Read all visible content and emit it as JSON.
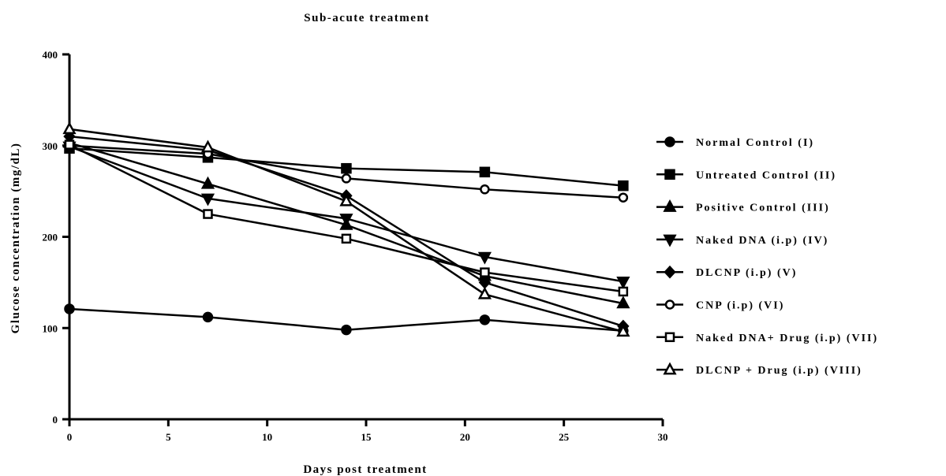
{
  "chart_data": {
    "type": "line",
    "title": "Sub-acute treatment",
    "xlabel": "Days post treatment",
    "ylabel": "Glucose concentration (mg/dL)",
    "xlim": [
      0,
      30
    ],
    "ylim": [
      0,
      400
    ],
    "xticks": [
      0,
      5,
      10,
      15,
      20,
      25,
      30
    ],
    "yticks": [
      0,
      100,
      200,
      300,
      400
    ],
    "x": [
      0,
      7,
      14,
      21,
      28
    ],
    "grid": false,
    "legend_position": "right",
    "series": [
      {
        "name": "Normal Control (I)",
        "marker": "circle-filled",
        "values": [
          121,
          112,
          98,
          109,
          97
        ]
      },
      {
        "name": "Untreated Control (II)",
        "marker": "square-filled",
        "values": [
          297,
          287,
          275,
          271,
          256
        ]
      },
      {
        "name": "Positive Control (III)",
        "marker": "triangle-up-filled",
        "values": [
          303,
          258,
          213,
          157,
          127
        ]
      },
      {
        "name": "Naked DNA (i.p) (IV)",
        "marker": "triangle-down-filled",
        "values": [
          299,
          242,
          220,
          178,
          151
        ]
      },
      {
        "name": "DLCNP (i.p) (V)",
        "marker": "diamond-filled",
        "values": [
          310,
          295,
          245,
          150,
          102
        ]
      },
      {
        "name": "CNP (i.p) (VI)",
        "marker": "circle-open",
        "values": [
          300,
          291,
          264,
          252,
          243
        ]
      },
      {
        "name": "Naked DNA+ Drug (i.p) (VII)",
        "marker": "square-open",
        "values": [
          301,
          225,
          198,
          161,
          140
        ]
      },
      {
        "name": "DLCNP + Drug (i.p) (VIII)",
        "marker": "triangle-up-open",
        "values": [
          318,
          298,
          239,
          137,
          96
        ]
      }
    ]
  }
}
